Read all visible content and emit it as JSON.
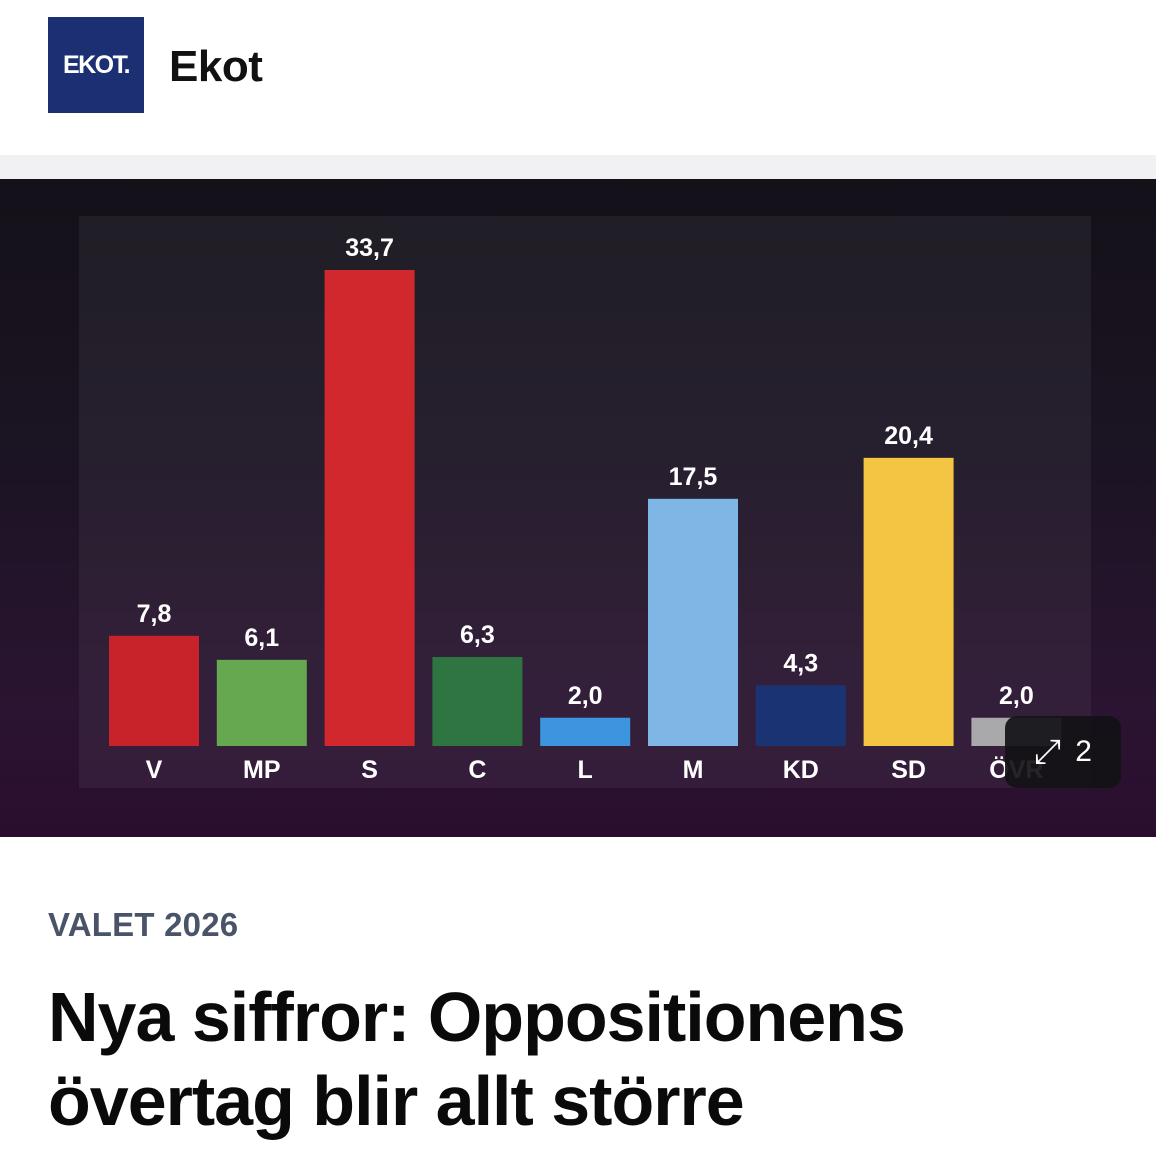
{
  "header": {
    "logo_text": "EKOT.",
    "brand_name": "Ekot"
  },
  "gallery": {
    "expand_icon": "expand-arrows-icon",
    "count": "2"
  },
  "article": {
    "kicker": "VALET 2026",
    "headline": "Nya siffror: Oppositionens övertag blir allt större"
  },
  "colors": {
    "logo_bg": "#1c2f73",
    "kicker": "#4a5468"
  },
  "chart_data": {
    "type": "bar",
    "categories": [
      "V",
      "MP",
      "S",
      "C",
      "L",
      "M",
      "KD",
      "SD",
      "ÖVR"
    ],
    "values": [
      7.8,
      6.1,
      33.7,
      6.3,
      2.0,
      17.5,
      4.3,
      20.4,
      2.0
    ],
    "value_labels": [
      "7,8",
      "6,1",
      "33,7",
      "6,3",
      "2,0",
      "17,5",
      "4,3",
      "20,4",
      "2,0"
    ],
    "colors": [
      "#c8232b",
      "#66a850",
      "#d0282d",
      "#2f7541",
      "#3d95e0",
      "#7eb6e6",
      "#1a3473",
      "#f3c543",
      "#a9a9ab"
    ],
    "ylim": [
      0,
      33.7
    ],
    "grid": false,
    "legend": "none"
  }
}
